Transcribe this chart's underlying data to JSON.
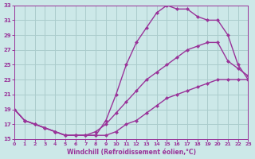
{
  "line1_x": [
    0,
    1,
    2,
    3,
    4,
    5,
    6,
    7,
    8,
    9,
    10,
    11,
    12,
    13,
    14,
    15,
    16,
    17,
    18,
    19,
    20,
    21,
    22,
    23
  ],
  "line1_y": [
    19,
    17.5,
    17,
    16.5,
    16,
    15.5,
    15.5,
    15.5,
    15.5,
    17.5,
    21,
    25,
    28,
    30,
    32,
    33,
    32.5,
    32.5,
    31.5,
    31,
    31,
    29,
    25,
    23
  ],
  "line2_x": [
    0,
    1,
    2,
    3,
    4,
    5,
    6,
    7,
    8,
    9,
    10,
    11,
    12,
    13,
    14,
    15,
    16,
    17,
    18,
    19,
    20,
    21,
    22,
    23
  ],
  "line2_y": [
    19,
    17.5,
    17,
    16.5,
    16,
    15.5,
    15.5,
    15.5,
    16,
    17,
    18.5,
    20,
    21.5,
    23,
    24,
    25,
    26,
    27,
    27.5,
    28,
    28,
    25.5,
    24.5,
    23.5
  ],
  "line3_x": [
    0,
    1,
    2,
    3,
    4,
    5,
    6,
    7,
    8,
    9,
    10,
    11,
    12,
    13,
    14,
    15,
    16,
    17,
    18,
    19,
    20,
    21,
    22,
    23
  ],
  "line3_y": [
    19,
    17.5,
    17,
    16.5,
    16,
    15.5,
    15.5,
    15.5,
    15.5,
    15.5,
    16,
    17,
    17.5,
    18.5,
    19.5,
    20.5,
    21,
    21.5,
    22,
    22.5,
    23,
    23,
    23,
    23
  ],
  "line_color": "#993399",
  "bg_color": "#cce8e8",
  "grid_color": "#aacccc",
  "xlim": [
    0,
    23
  ],
  "ylim": [
    15,
    33
  ],
  "xticks": [
    0,
    1,
    2,
    3,
    4,
    5,
    6,
    7,
    8,
    9,
    10,
    11,
    12,
    13,
    14,
    15,
    16,
    17,
    18,
    19,
    20,
    21,
    22,
    23
  ],
  "yticks": [
    15,
    17,
    19,
    21,
    23,
    25,
    27,
    29,
    31,
    33
  ],
  "xlabel": "Windchill (Refroidissement éolien,°C)",
  "xlabel_color": "#993399",
  "marker": "D",
  "markersize": 2.5,
  "linewidth": 1.0
}
